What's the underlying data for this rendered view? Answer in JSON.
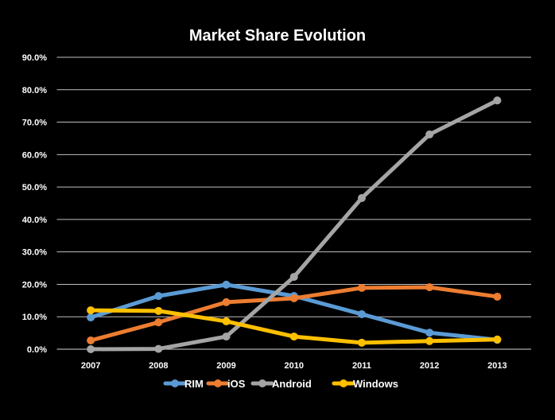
{
  "chart_data": {
    "type": "line",
    "title": "Market Share Evolution",
    "categories": [
      "2007",
      "2008",
      "2009",
      "2010",
      "2011",
      "2012",
      "2013"
    ],
    "ylim": [
      0,
      90
    ],
    "yticks": [
      "0.0%",
      "10.0%",
      "20.0%",
      "30.0%",
      "40.0%",
      "50.0%",
      "60.0%",
      "70.0%",
      "80.0%",
      "90.0%"
    ],
    "grid": true,
    "legend": "bottom",
    "series": [
      {
        "name": "RIM",
        "color": "#5B9BD5",
        "values": [
          9.8,
          16.4,
          19.9,
          16.4,
          10.8,
          5.1,
          2.9
        ]
      },
      {
        "name": "iOS",
        "color": "#ED7D31",
        "values": [
          2.7,
          8.3,
          14.5,
          15.7,
          18.9,
          19.1,
          16.2
        ]
      },
      {
        "name": "Android",
        "color": "#A5A5A5",
        "values": [
          0.0,
          0.1,
          3.9,
          22.3,
          46.6,
          66.2,
          76.7
        ]
      },
      {
        "name": "Windows",
        "color": "#FFC000",
        "values": [
          12.0,
          11.8,
          8.6,
          3.9,
          2.0,
          2.5,
          3.0
        ]
      }
    ]
  }
}
